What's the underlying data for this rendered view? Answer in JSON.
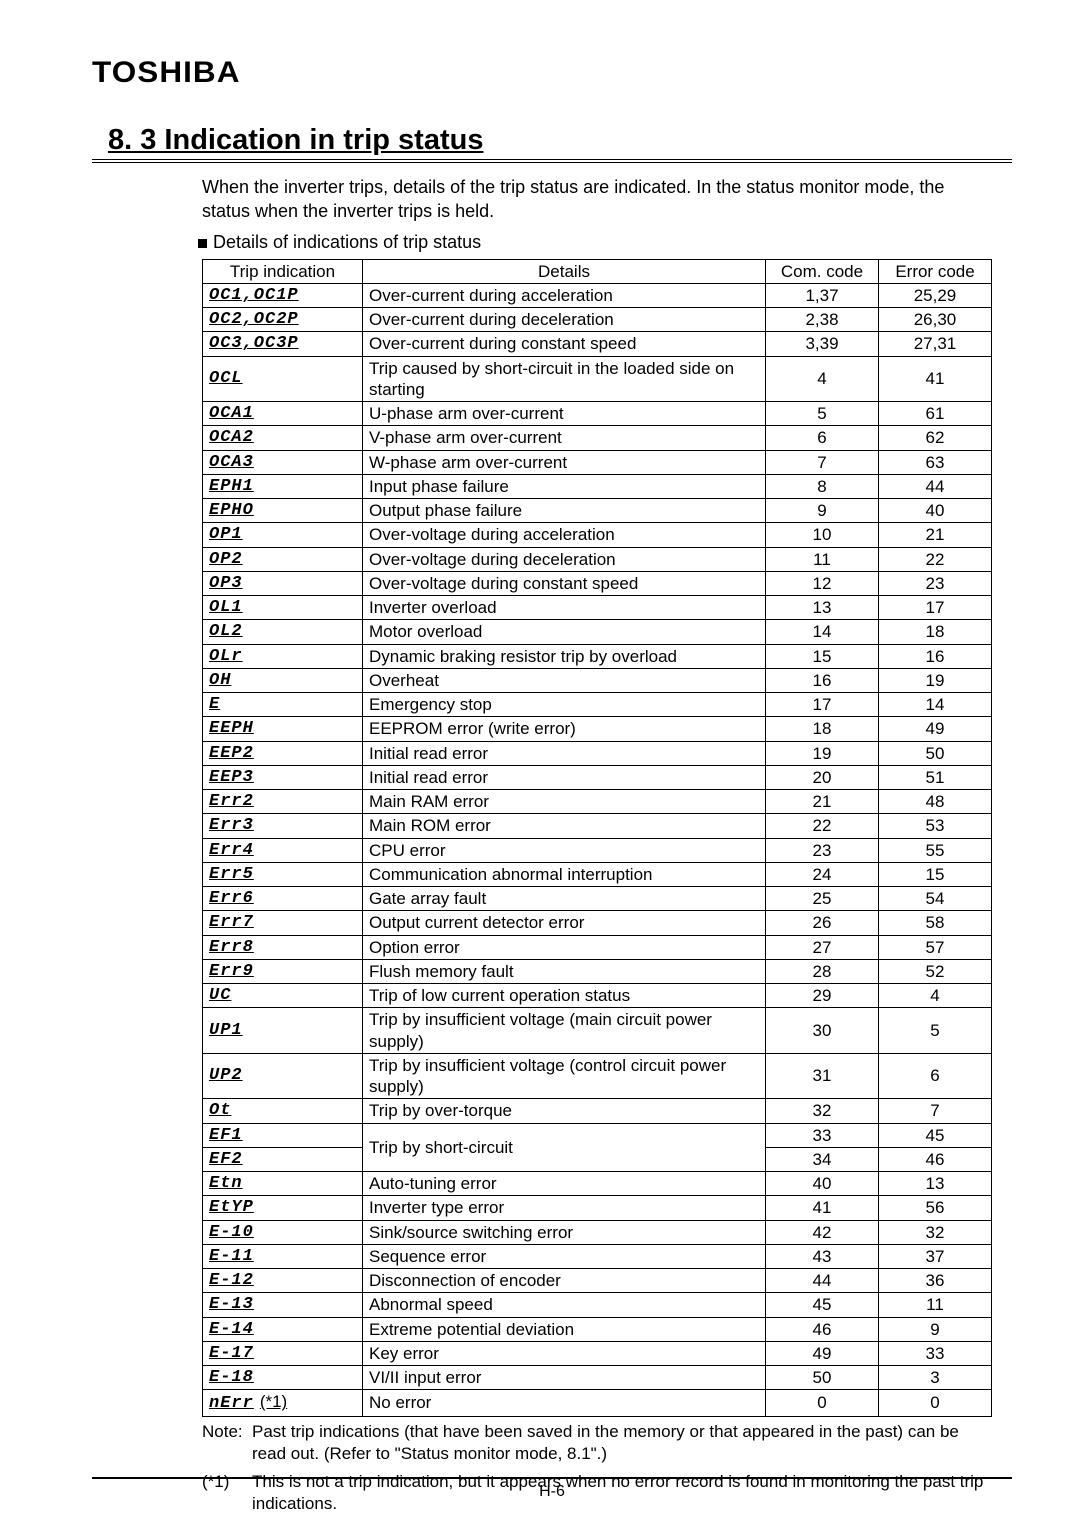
{
  "brand": "TOSHIBA",
  "title": "8. 3 Indication in trip status",
  "intro": "When the inverter trips, details of the trip status are indicated. In the status monitor mode, the status when the inverter trips is held.",
  "bullet": "Details of indications of trip status",
  "columns": [
    "Trip indication",
    "Details",
    "Com. code",
    "Error code"
  ],
  "note": {
    "label": "Note:",
    "text": "Past trip indications (that have been saved in the memory or that appeared in the past) can be read out. (Refer to \"Status monitor mode, 8.1\".)"
  },
  "footnote": {
    "label": "(*1)",
    "text": "This is not a trip indication, but it appears when no error record is found in monitoring the past trip indications."
  },
  "footer": "H-6",
  "rows": [
    {
      "ind_glyph": "OC1,OC1P",
      "det": "Over-current during acceleration",
      "com": "1,37",
      "err": "25,29"
    },
    {
      "ind_glyph": "OC2,OC2P",
      "det": "Over-current during deceleration",
      "com": "2,38",
      "err": "26,30"
    },
    {
      "ind_glyph": "OC3,OC3P",
      "det": "Over-current during constant speed",
      "com": "3,39",
      "err": "27,31"
    },
    {
      "ind_glyph": "OCL",
      "det": "Trip caused by short-circuit in the loaded side on starting",
      "com": "4",
      "err": "41"
    },
    {
      "ind_glyph": "OCA1",
      "det": "U-phase arm over-current",
      "com": "5",
      "err": "61"
    },
    {
      "ind_glyph": "OCA2",
      "det": "V-phase arm over-current",
      "com": "6",
      "err": "62"
    },
    {
      "ind_glyph": "OCA3",
      "det": "W-phase arm over-current",
      "com": "7",
      "err": "63"
    },
    {
      "ind_glyph": "EPH1",
      "det": "Input phase failure",
      "com": "8",
      "err": "44"
    },
    {
      "ind_glyph": "EPHO",
      "det": "Output phase failure",
      "com": "9",
      "err": "40"
    },
    {
      "ind_glyph": "OP1",
      "det": "Over-voltage during acceleration",
      "com": "10",
      "err": "21"
    },
    {
      "ind_glyph": "OP2",
      "det": "Over-voltage during deceleration",
      "com": "11",
      "err": "22"
    },
    {
      "ind_glyph": "OP3",
      "det": "Over-voltage during constant speed",
      "com": "12",
      "err": "23"
    },
    {
      "ind_glyph": "OL1",
      "det": "Inverter overload",
      "com": "13",
      "err": "17"
    },
    {
      "ind_glyph": "OL2",
      "det": "Motor overload",
      "com": "14",
      "err": "18"
    },
    {
      "ind_glyph": "OLr",
      "det": "Dynamic braking resistor trip by overload",
      "com": "15",
      "err": "16"
    },
    {
      "ind_glyph": "OH",
      "det": "Overheat",
      "com": "16",
      "err": "19"
    },
    {
      "ind_glyph": "E",
      "det": "Emergency stop",
      "com": "17",
      "err": "14"
    },
    {
      "ind_glyph": "EEPH",
      "det": "EEPROM error (write error)",
      "com": "18",
      "err": "49"
    },
    {
      "ind_glyph": "EEP2",
      "det": "Initial read error",
      "com": "19",
      "err": "50"
    },
    {
      "ind_glyph": "EEP3",
      "det": "Initial read error",
      "com": "20",
      "err": "51"
    },
    {
      "ind_glyph": "Err2",
      "det": "Main RAM error",
      "com": "21",
      "err": "48"
    },
    {
      "ind_glyph": "Err3",
      "det": "Main ROM error",
      "com": "22",
      "err": "53"
    },
    {
      "ind_glyph": "Err4",
      "det": "CPU error",
      "com": "23",
      "err": "55"
    },
    {
      "ind_glyph": "Err5",
      "det": "Communication abnormal interruption",
      "com": "24",
      "err": "15"
    },
    {
      "ind_glyph": "Err6",
      "det": "Gate array fault",
      "com": "25",
      "err": "54"
    },
    {
      "ind_glyph": "Err7",
      "det": "Output current detector error",
      "com": "26",
      "err": "58"
    },
    {
      "ind_glyph": "Err8",
      "det": "Option error",
      "com": "27",
      "err": "57"
    },
    {
      "ind_glyph": "Err9",
      "det": "Flush memory fault",
      "com": "28",
      "err": "52"
    },
    {
      "ind_glyph": "UC",
      "det": "Trip of low current operation status",
      "com": "29",
      "err": "4"
    },
    {
      "ind_glyph": "UP1",
      "det": "Trip by insufficient voltage (main circuit power supply)",
      "com": "30",
      "err": "5"
    },
    {
      "ind_glyph": "UP2",
      "det": "Trip by insufficient voltage (control circuit power supply)",
      "com": "31",
      "err": "6"
    },
    {
      "ind_glyph": "Ot",
      "det": "Trip by over-torque",
      "com": "32",
      "err": "7"
    },
    {
      "ind_glyph": "EF1",
      "det_span": "Trip by short-circuit",
      "com": "33",
      "err": "45",
      "rowspan_det": 2
    },
    {
      "ind_glyph": "EF2",
      "com": "34",
      "err": "46",
      "skip_det": true
    },
    {
      "ind_glyph": "Etn",
      "det": "Auto-tuning error",
      "com": "40",
      "err": "13"
    },
    {
      "ind_glyph": "EtYP",
      "det": "Inverter type error",
      "com": "41",
      "err": "56"
    },
    {
      "ind_glyph": "E-10",
      "det": "Sink/source switching error",
      "com": "42",
      "err": "32"
    },
    {
      "ind_glyph": "E-11",
      "det": "Sequence error",
      "com": "43",
      "err": "37"
    },
    {
      "ind_glyph": "E-12",
      "det": "Disconnection of encoder",
      "com": "44",
      "err": "36"
    },
    {
      "ind_glyph": "E-13",
      "det": "Abnormal speed",
      "com": "45",
      "err": "11"
    },
    {
      "ind_glyph": "E-14",
      "det": "Extreme potential deviation",
      "com": "46",
      "err": "9"
    },
    {
      "ind_glyph": "E-17",
      "det": "Key error",
      "com": "49",
      "err": "33"
    },
    {
      "ind_glyph": "E-18",
      "det": "VI/II input error",
      "com": "50",
      "err": "3"
    },
    {
      "ind_glyph": "nErr",
      "ind_tail": "(*1)",
      "det": "No error",
      "com": "0",
      "err": "0"
    }
  ]
}
